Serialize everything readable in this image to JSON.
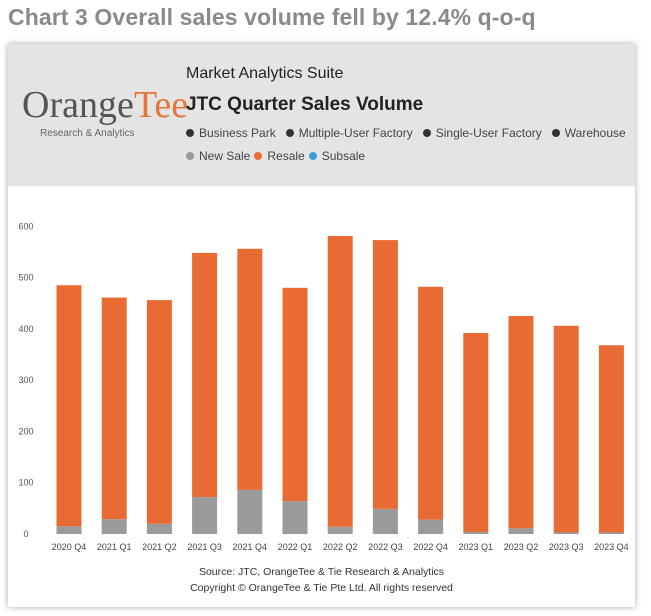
{
  "page_title": "Chart 3 Overall sales volume fell by 12.4% q-o-q",
  "header": {
    "logo_word_a": "Orange",
    "logo_word_b": "Tee",
    "logo_sub": "Research & Analytics",
    "suite": "Market Analytics Suite",
    "title": "JTC Quarter Sales Volume"
  },
  "legend_types": [
    {
      "label": "Business Park",
      "color": "#333333"
    },
    {
      "label": "Multiple-User Factory",
      "color": "#333333"
    },
    {
      "label": "Single-User Factory",
      "color": "#333333"
    },
    {
      "label": "Warehouse",
      "color": "#333333"
    }
  ],
  "legend_sales": [
    {
      "label": "New Sale",
      "color": "#9a9a9a"
    },
    {
      "label": "Resale",
      "color": "#e96b34"
    },
    {
      "label": "Subsale",
      "color": "#3e9bd8"
    }
  ],
  "footer": {
    "source": "Source: JTC, OrangeTee & Tie Research & Analytics",
    "copyright": "Copyright © OrangeTee & Tie Pte Ltd. All rights reserved"
  },
  "chart_data": {
    "type": "bar",
    "stacked": true,
    "categories": [
      "2020 Q4",
      "2021 Q1",
      "2021 Q2",
      "2021 Q3",
      "2021 Q4",
      "2022 Q1",
      "2022 Q2",
      "2022 Q3",
      "2022 Q4",
      "2023 Q1",
      "2023 Q2",
      "2023 Q3",
      "2023 Q4"
    ],
    "series": [
      {
        "name": "New Sale",
        "color": "#9a9a9a",
        "values": [
          15,
          29,
          20,
          72,
          86,
          64,
          14,
          49,
          28,
          4,
          11,
          3,
          3
        ]
      },
      {
        "name": "Resale",
        "color": "#e96b34",
        "values": [
          470,
          432,
          436,
          476,
          470,
          416,
          567,
          524,
          454,
          388,
          414,
          403,
          365
        ]
      }
    ],
    "yticks": [
      0,
      100,
      200,
      300,
      400,
      500,
      600
    ],
    "ylim": [
      0,
      620
    ],
    "grid": false
  }
}
